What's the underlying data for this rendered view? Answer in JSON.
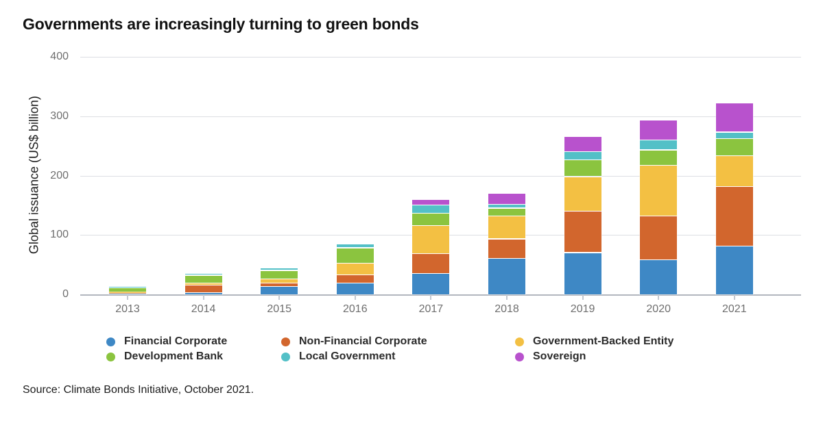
{
  "title": "Governments are increasingly turning to green bonds",
  "source": "Source: Climate Bonds Initiative, October 2021.",
  "chart_data": {
    "type": "bar",
    "stacked": true,
    "title": "Governments are increasingly turning to green bonds",
    "xlabel": "",
    "ylabel": "Global issuance (US$ billion)",
    "ylim": [
      0,
      400
    ],
    "yticks": [
      0,
      100,
      200,
      300,
      400
    ],
    "grid": true,
    "legend_position": "bottom",
    "categories": [
      "2013",
      "2014",
      "2015",
      "2016",
      "2017",
      "2018",
      "2019",
      "2020",
      "2021"
    ],
    "series": [
      {
        "name": "Financial Corporate",
        "color": "#3e88c5",
        "values": [
          1,
          4,
          14,
          20,
          36,
          61,
          71,
          59,
          82
        ]
      },
      {
        "name": "Non-Financial Corporate",
        "color": "#d2662d",
        "values": [
          1.5,
          12,
          6,
          14,
          33,
          33,
          70,
          74,
          100
        ]
      },
      {
        "name": "Government-Backed Entity",
        "color": "#f3c043",
        "values": [
          2.5,
          4,
          7,
          19,
          48,
          39,
          58,
          85,
          52
        ]
      },
      {
        "name": "Development Bank",
        "color": "#8bc43f",
        "values": [
          7,
          13,
          14,
          26,
          20,
          13,
          28,
          26,
          29
        ]
      },
      {
        "name": "Local Government",
        "color": "#53c0c7",
        "values": [
          0.5,
          3,
          4,
          6,
          14,
          6,
          14,
          17,
          11
        ]
      },
      {
        "name": "Sovereign",
        "color": "#b852cd",
        "values": [
          0,
          0,
          0,
          0,
          10,
          19,
          26,
          33,
          49
        ]
      }
    ],
    "totals": [
      12.5,
      36,
      45,
      85,
      161,
      171,
      267,
      294,
      323
    ]
  },
  "layout_note": "stacked column chart, gridlines on, legend below in 3 columns x 2 rows"
}
